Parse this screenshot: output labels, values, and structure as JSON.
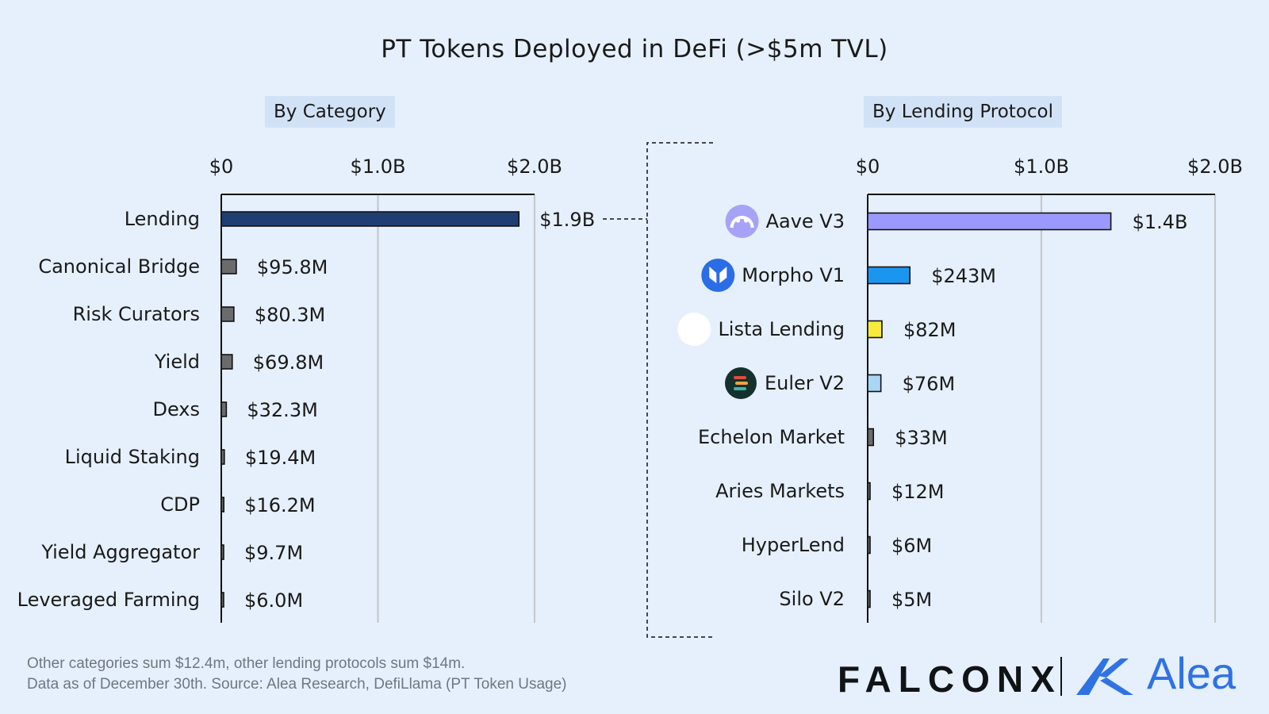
{
  "title": "PT Tokens Deployed in DeFi (>$5m TVL)",
  "colors": {
    "background": "#e6f0fc",
    "lending_bar": "#1f3f73",
    "other_bar": "#6b6b6b",
    "aave": "#9b99fb",
    "morpho": "#1b96ef",
    "lista": "#f7ea3a",
    "euler": "#a9d6f5",
    "brand_alea": "#2f72e4"
  },
  "chart_data": [
    {
      "type": "bar",
      "orientation": "horizontal",
      "title": "By Category",
      "xlim": [
        0,
        2000000000
      ],
      "ticks": [
        0,
        1000000000,
        2000000000
      ],
      "tick_labels": [
        "$0",
        "$1.0B",
        "$2.0B"
      ],
      "categories": [
        "Lending",
        "Canonical Bridge",
        "Risk Curators",
        "Yield",
        "Dexs",
        "Liquid Staking",
        "CDP",
        "Yield Aggregator",
        "Leveraged Farming"
      ],
      "values": [
        1900000000,
        95800000,
        80300000,
        69800000,
        32300000,
        19400000,
        16200000,
        9700000,
        6000000
      ],
      "labels": [
        "$1.9B",
        "$95.8M",
        "$80.3M",
        "$69.8M",
        "$32.3M",
        "$19.4M",
        "$16.2M",
        "$9.7M",
        "$6.0M"
      ],
      "bar_colors": [
        "#1f3f73",
        "#6b6b6b",
        "#6b6b6b",
        "#6b6b6b",
        "#6b6b6b",
        "#6b6b6b",
        "#6b6b6b",
        "#6b6b6b",
        "#6b6b6b"
      ],
      "grid": true
    },
    {
      "type": "bar",
      "orientation": "horizontal",
      "title": "By Lending Protocol",
      "xlim": [
        0,
        2000000000
      ],
      "ticks": [
        0,
        1000000000,
        2000000000
      ],
      "tick_labels": [
        "$0",
        "$1.0B",
        "$2.0B"
      ],
      "categories": [
        "Aave V3",
        "Morpho V1",
        "Lista Lending",
        "Euler V2",
        "Echelon Market",
        "Aries Markets",
        "HyperLend",
        "Silo V2"
      ],
      "values": [
        1400000000,
        243000000,
        82000000,
        76000000,
        33000000,
        12000000,
        6000000,
        5000000
      ],
      "labels": [
        "$1.4B",
        "$243M",
        "$82M",
        "$76M",
        "$33M",
        "$12M",
        "$6M",
        "$5M"
      ],
      "bar_colors": [
        "#9b99fb",
        "#1b96ef",
        "#f7ea3a",
        "#a9d6f5",
        "#6b6b6b",
        "#6b6b6b",
        "#6b6b6b",
        "#6b6b6b"
      ],
      "icons": [
        "aave-icon",
        "morpho-icon",
        "lista-icon",
        "euler-icon",
        "",
        "",
        "",
        ""
      ],
      "grid": true
    }
  ],
  "footnotes": [
    "Other categories sum $12.4m, other lending protocols sum $14m.",
    "Data as of December 30th. Source: Alea Research, DefiLlama (PT Token Usage)"
  ],
  "brands": {
    "falconx": "FALCONX",
    "alea": "Alea"
  }
}
